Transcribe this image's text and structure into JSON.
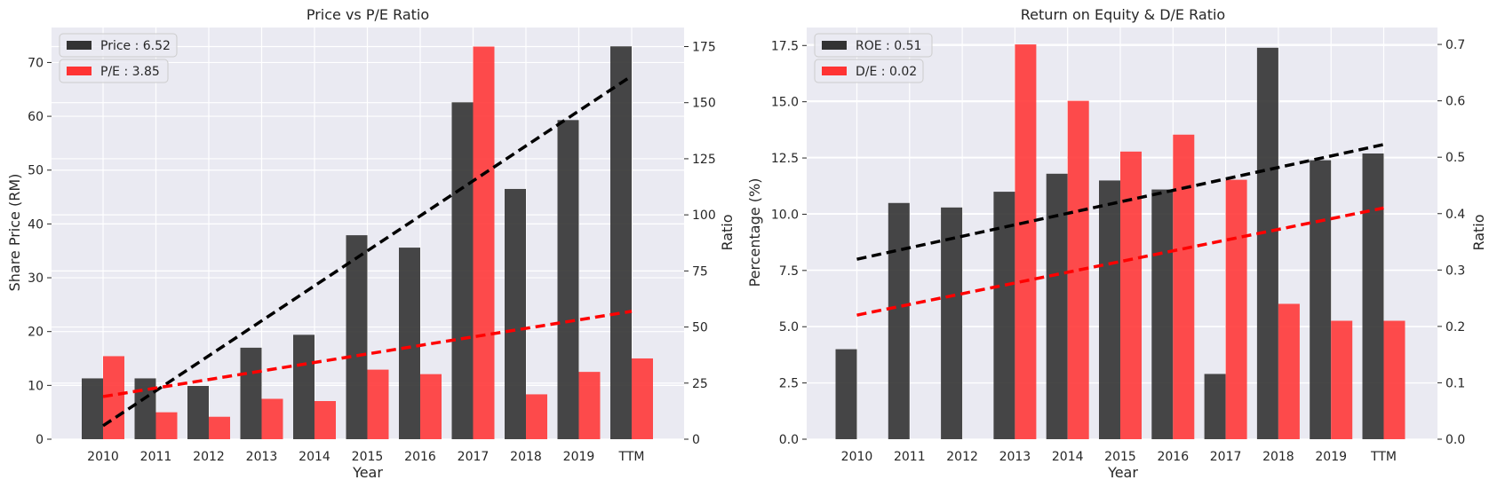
{
  "chart_data": [
    {
      "type": "bar",
      "title": "Price vs P/E Ratio",
      "xlabel": "Year",
      "ylabel": "Share Price (RM)",
      "ylabel_right": "Ratio",
      "categories": [
        "2010",
        "2011",
        "2012",
        "2013",
        "2014",
        "2015",
        "2016",
        "2017",
        "2018",
        "2019",
        "TTM"
      ],
      "ylim": [
        0,
        76.5
      ],
      "ylim_right": [
        0,
        183.5
      ],
      "yticks": [
        0,
        10,
        20,
        30,
        40,
        50,
        60,
        70
      ],
      "yticks_right": [
        0,
        25,
        50,
        75,
        100,
        125,
        150,
        175
      ],
      "grid": true,
      "legend_position": "top-left",
      "series": [
        {
          "name": "Price : 6.52",
          "axis": "left",
          "color": "#333333",
          "values": [
            11.3,
            11.3,
            9.9,
            17.0,
            19.4,
            37.9,
            35.6,
            62.6,
            46.5,
            59.3,
            73.0
          ]
        },
        {
          "name": "P/E : 3.85",
          "axis": "right",
          "color": "#ff3333",
          "values": [
            37,
            12,
            10,
            18,
            17,
            31,
            29,
            175,
            20,
            30,
            36
          ]
        }
      ],
      "trendlines": [
        {
          "axis": "left",
          "color": "#000000",
          "from": [
            0,
            2.5
          ],
          "to": [
            10,
            67.5
          ]
        },
        {
          "axis": "right",
          "color": "#ff0000",
          "from": [
            0,
            19
          ],
          "to": [
            10,
            57
          ]
        }
      ]
    },
    {
      "type": "bar",
      "title": "Return on Equity & D/E Ratio",
      "xlabel": "Year",
      "ylabel": "Percentage (%)",
      "ylabel_right": "Ratio",
      "categories": [
        "2010",
        "2011",
        "2012",
        "2013",
        "2014",
        "2015",
        "2016",
        "2017",
        "2018",
        "2019",
        "TTM"
      ],
      "ylim": [
        0,
        18.3
      ],
      "ylim_right": [
        0,
        0.73
      ],
      "yticks": [
        0.0,
        2.5,
        5.0,
        7.5,
        10.0,
        12.5,
        15.0,
        17.5
      ],
      "yticks_right": [
        0.0,
        0.1,
        0.2,
        0.3,
        0.4,
        0.5,
        0.6,
        0.7
      ],
      "grid": true,
      "legend_position": "top-left",
      "series": [
        {
          "name": "ROE : 0.51",
          "axis": "left",
          "color": "#333333",
          "values": [
            4.0,
            10.5,
            10.3,
            11.0,
            11.8,
            11.5,
            11.1,
            2.9,
            17.4,
            12.4,
            12.7
          ]
        },
        {
          "name": "D/E : 0.02",
          "axis": "right",
          "color": "#ff3333",
          "values": [
            0,
            0,
            0,
            0.7,
            0.6,
            0.51,
            0.54,
            0.46,
            0.24,
            0.21,
            0.21
          ]
        }
      ],
      "trendlines": [
        {
          "axis": "left",
          "color": "#000000",
          "from": [
            0,
            8.0
          ],
          "to": [
            10,
            13.1
          ]
        },
        {
          "axis": "right",
          "color": "#ff0000",
          "from": [
            0,
            0.22
          ],
          "to": [
            10,
            0.41
          ]
        }
      ]
    }
  ]
}
